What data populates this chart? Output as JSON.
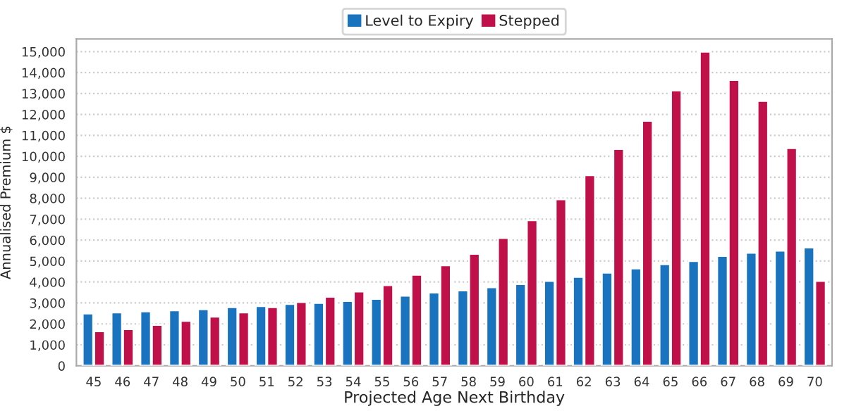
{
  "chart_data": {
    "type": "bar",
    "xlabel": "Projected Age Next Birthday",
    "ylabel": "Annualised Premium $",
    "categories": [
      "45",
      "46",
      "47",
      "48",
      "49",
      "50",
      "51",
      "52",
      "53",
      "54",
      "55",
      "56",
      "57",
      "58",
      "59",
      "60",
      "61",
      "62",
      "63",
      "64",
      "65",
      "66",
      "67",
      "68",
      "69",
      "70"
    ],
    "series": [
      {
        "name": "Level to Expiry",
        "color": "#1a73be",
        "values": [
          2500,
          2550,
          2600,
          2650,
          2700,
          2800,
          2850,
          2950,
          3000,
          3100,
          3200,
          3350,
          3500,
          3600,
          3750,
          3900,
          4050,
          4250,
          4450,
          4650,
          4850,
          5000,
          5250,
          5400,
          5500,
          5650
        ]
      },
      {
        "name": "Stepped",
        "color": "#c0104a",
        "values": [
          1650,
          1750,
          1950,
          2150,
          2350,
          2550,
          2800,
          3050,
          3300,
          3550,
          3850,
          4350,
          4800,
          5350,
          6100,
          6950,
          7950,
          9100,
          10350,
          11700,
          13150,
          15000,
          13650,
          12650,
          10400,
          4050
        ]
      }
    ],
    "ylim": [
      0,
      15600
    ],
    "yticks": [
      {
        "value": 0,
        "label": "0"
      },
      {
        "value": 1000,
        "label": "1,000"
      },
      {
        "value": 2000,
        "label": "2,000"
      },
      {
        "value": 3000,
        "label": "3,000"
      },
      {
        "value": 4000,
        "label": "4,000"
      },
      {
        "value": 5000,
        "label": "5,000"
      },
      {
        "value": 6000,
        "label": "6,000"
      },
      {
        "value": 7000,
        "label": "7,000"
      },
      {
        "value": 8000,
        "label": "8,000"
      },
      {
        "value": 9000,
        "label": "9,000"
      },
      {
        "value": 10000,
        "label": "10,000"
      },
      {
        "value": 11000,
        "label": "11,000"
      },
      {
        "value": 12000,
        "label": "12,000"
      },
      {
        "value": 13000,
        "label": "13,000"
      },
      {
        "value": 14000,
        "label": "14,000"
      },
      {
        "value": 15000,
        "label": "15,000"
      }
    ],
    "grid": "y",
    "legend": "top"
  }
}
